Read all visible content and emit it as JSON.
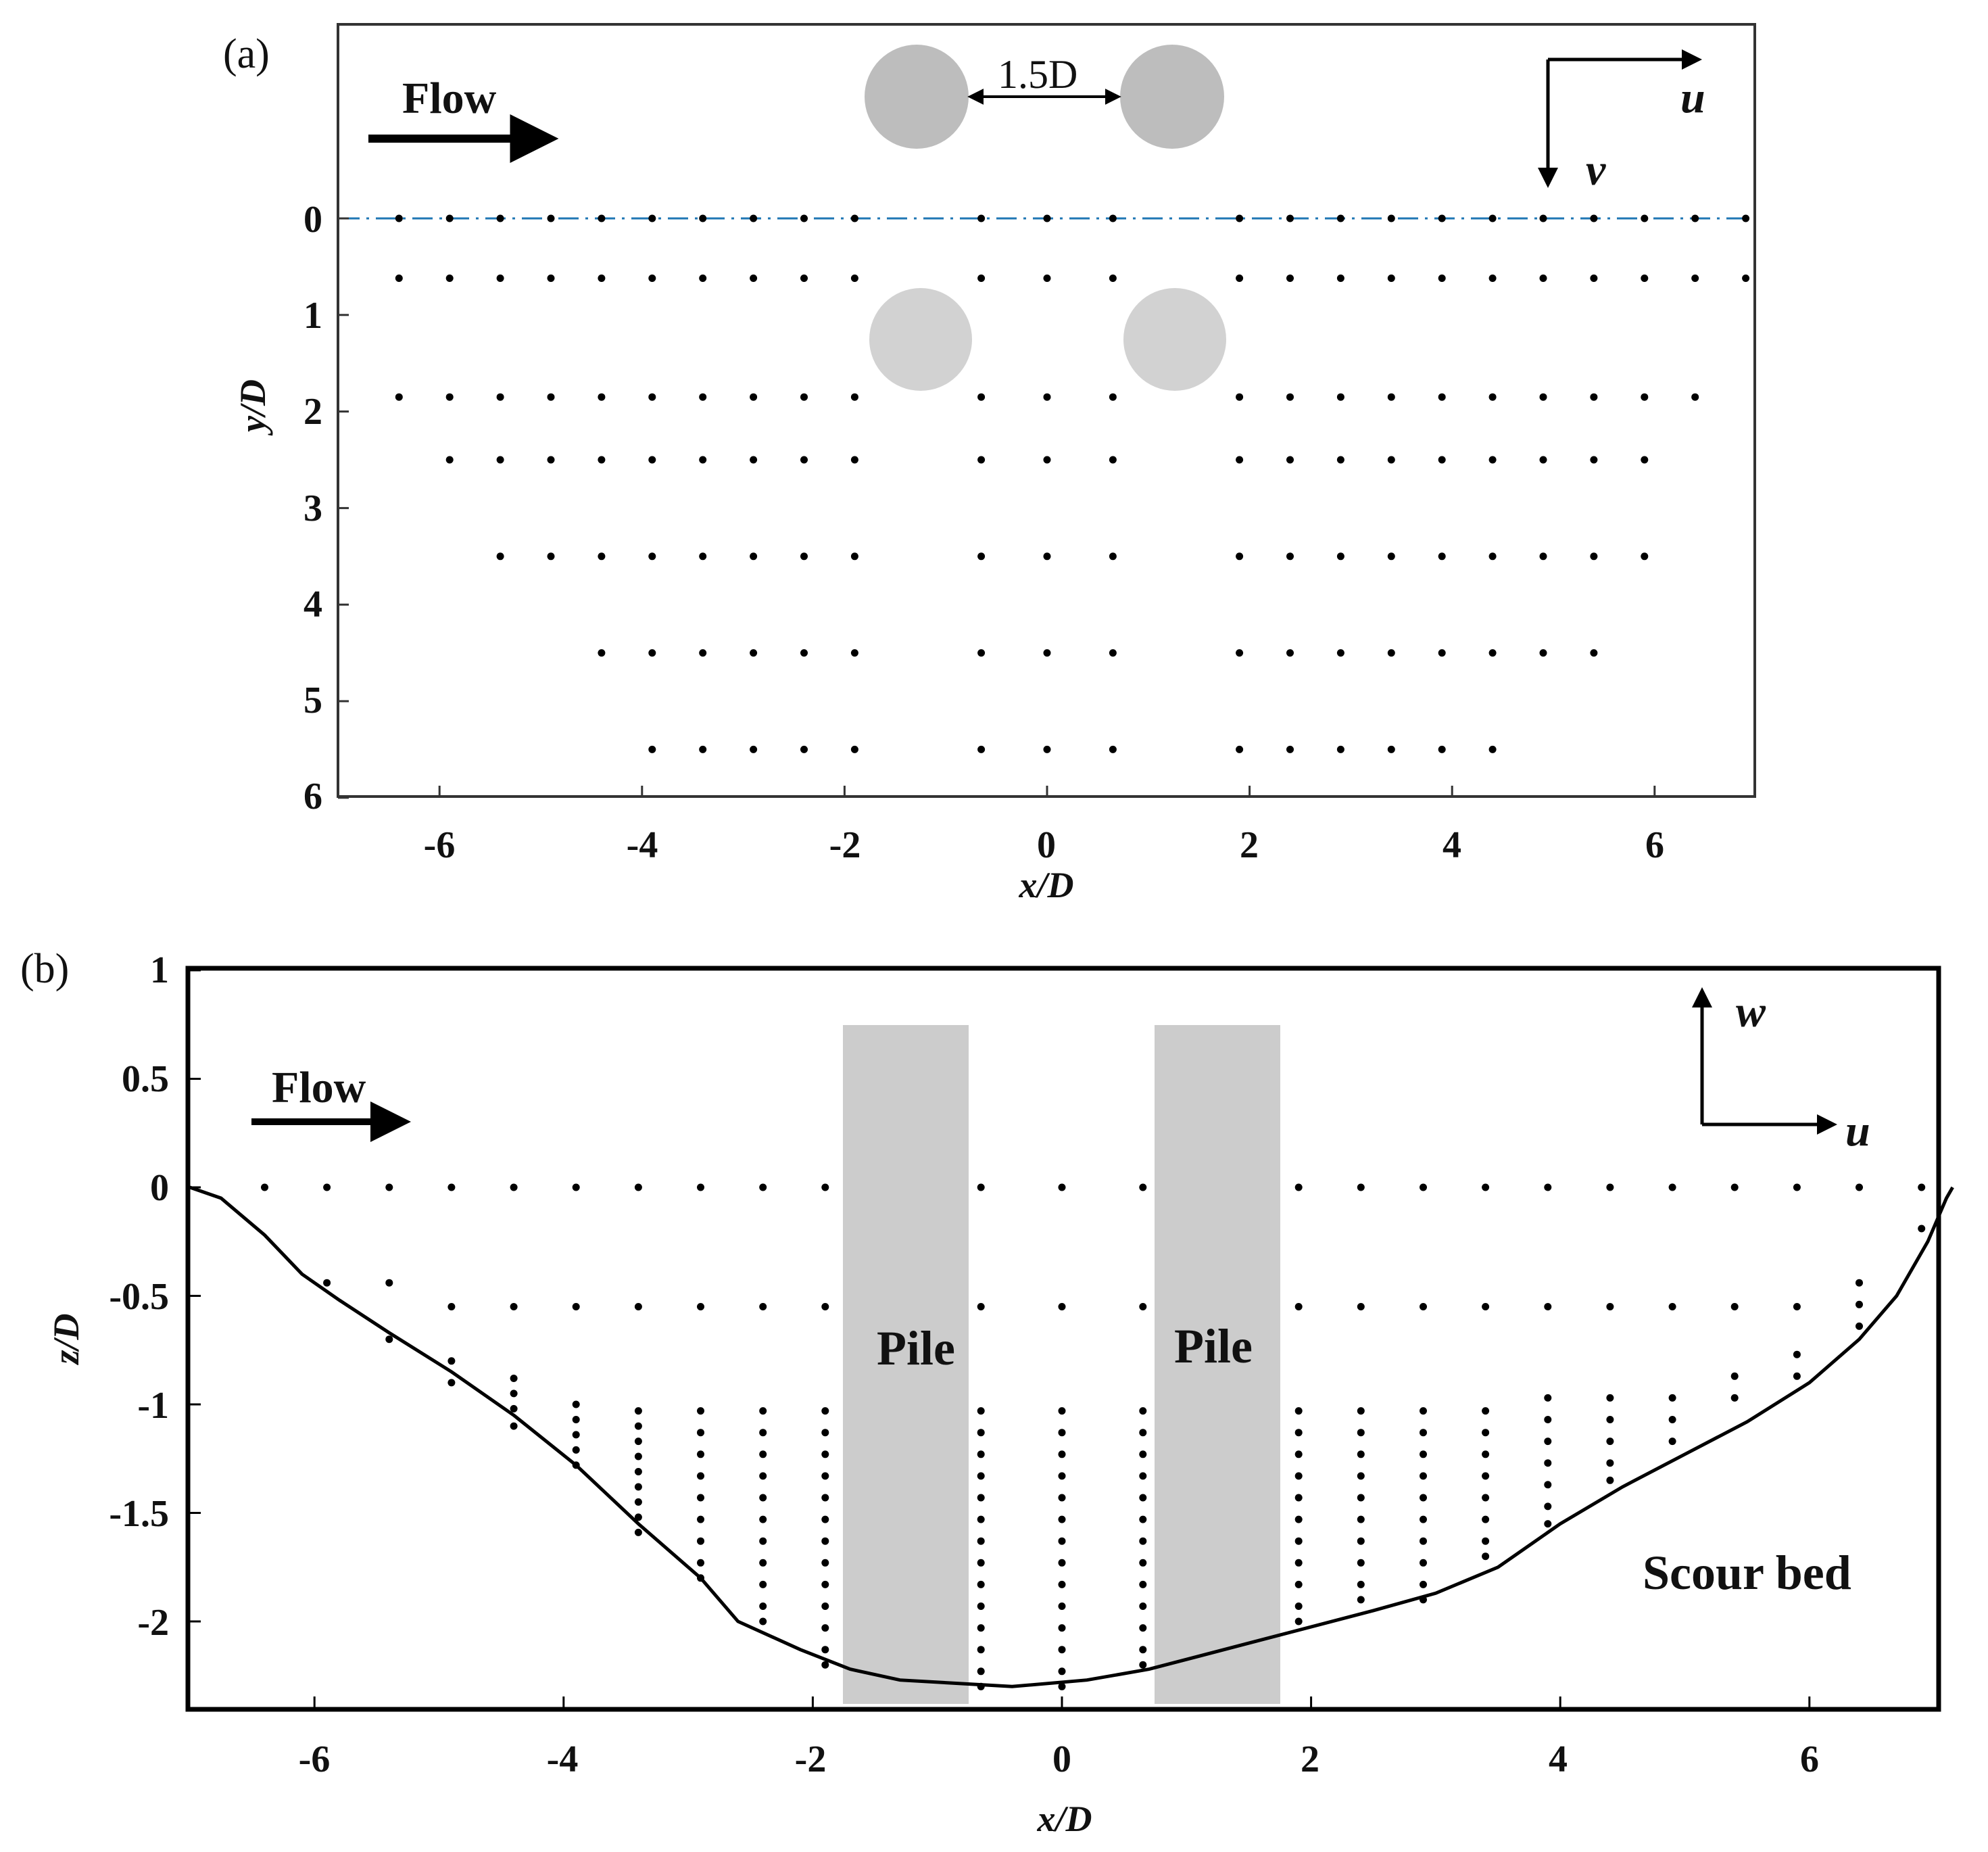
{
  "panel_a": {
    "label": "(a)",
    "flow_label": "Flow",
    "spacing_label": "1.5D",
    "axes_labels": {
      "x": "x/D",
      "y": "y/D"
    },
    "x_ticks": [
      "-6",
      "-4",
      "-2",
      "0",
      "2",
      "4",
      "6"
    ],
    "y_ticks": [
      "0",
      "1",
      "2",
      "3",
      "4",
      "5",
      "6"
    ],
    "vector_labels": {
      "u": "u",
      "v": "v"
    }
  },
  "panel_b": {
    "label": "(b)",
    "flow_label": "Flow",
    "pile_label_left": "Pile",
    "pile_label_right": "Pile",
    "bed_label": "Scour bed",
    "axes_labels": {
      "x": "x/D",
      "y": "z/D"
    },
    "x_ticks": [
      "-6",
      "-4",
      "-2",
      "0",
      "2",
      "4",
      "6"
    ],
    "y_ticks": [
      "1",
      "0.5",
      "0",
      "-0.5",
      "-1",
      "-1.5",
      "-2"
    ],
    "vector_labels": {
      "w": "w",
      "u": "u"
    }
  },
  "colors": {
    "axis": "#222222",
    "points": "#000000",
    "pile_top_view": "#bdbdbd",
    "pile_top_view_lower": "#d2d2d2",
    "pile_side_view": "#cccccc",
    "centerline": "#1f77b4"
  },
  "chart_data": [
    {
      "type": "scatter",
      "panel": "a",
      "xlim": [
        -7,
        7
      ],
      "ylim": [
        6,
        -2
      ],
      "y_inverted": true,
      "rows": [
        {
          "y": 0,
          "x": [
            -6.4,
            -5.9,
            -5.4,
            -4.9,
            -4.4,
            -3.9,
            -3.4,
            -2.9,
            -2.4,
            -1.9,
            -0.65,
            0,
            0.65,
            1.9,
            2.4,
            2.9,
            3.4,
            3.9,
            4.4,
            4.9,
            5.4,
            5.9,
            6.4,
            6.9
          ]
        },
        {
          "y": 0.62,
          "x": [
            -6.4,
            -5.9,
            -5.4,
            -4.9,
            -4.4,
            -3.9,
            -3.4,
            -2.9,
            -2.4,
            -1.9,
            -0.65,
            0,
            0.65,
            1.9,
            2.4,
            2.9,
            3.4,
            3.9,
            4.4,
            4.9,
            5.4,
            5.9,
            6.4,
            6.9
          ]
        },
        {
          "y": 1.85,
          "x": [
            -6.4,
            -5.9,
            -5.4,
            -4.9,
            -4.4,
            -3.9,
            -3.4,
            -2.9,
            -2.4,
            -1.9,
            -0.65,
            0,
            0.65,
            1.9,
            2.4,
            2.9,
            3.4,
            3.9,
            4.4,
            4.9,
            5.4,
            5.9,
            6.4
          ]
        },
        {
          "y": 2.5,
          "x": [
            -5.9,
            -5.4,
            -4.9,
            -4.4,
            -3.9,
            -3.4,
            -2.9,
            -2.4,
            -1.9,
            -0.65,
            0,
            0.65,
            1.9,
            2.4,
            2.9,
            3.4,
            3.9,
            4.4,
            4.9,
            5.4,
            5.9
          ]
        },
        {
          "y": 3.5,
          "x": [
            -5.4,
            -4.9,
            -4.4,
            -3.9,
            -3.4,
            -2.9,
            -2.4,
            -1.9,
            -0.65,
            0,
            0.65,
            1.9,
            2.4,
            2.9,
            3.4,
            3.9,
            4.4,
            4.9,
            5.4,
            5.9
          ]
        },
        {
          "y": 4.5,
          "x": [
            -4.4,
            -3.9,
            -3.4,
            -2.9,
            -2.4,
            -1.9,
            -0.65,
            0,
            0.65,
            1.9,
            2.4,
            2.9,
            3.4,
            3.9,
            4.4,
            4.9,
            5.4
          ]
        },
        {
          "y": 5.5,
          "x": [
            -3.9,
            -3.4,
            -2.9,
            -2.4,
            -1.9,
            -0.65,
            0,
            0.65,
            1.9,
            2.4,
            2.9,
            3.4,
            3.9,
            4.4
          ]
        }
      ],
      "piles_top": [
        {
          "x": -1.28,
          "y": -1.28,
          "d": 1
        },
        {
          "x": 1.25,
          "y": -1.28,
          "d": 1
        }
      ],
      "piles_mid": [
        {
          "x": -1.25,
          "y": 1.25,
          "d": 1
        },
        {
          "x": 1.25,
          "y": 1.25,
          "d": 1
        }
      ],
      "centerline_y": 0
    },
    {
      "type": "scatter",
      "panel": "b",
      "xlim": [
        -7,
        7.2
      ],
      "ylim": [
        -2.4,
        1
      ],
      "columns": [
        {
          "x": -6.4,
          "z": [
            0
          ]
        },
        {
          "x": -5.9,
          "z": [
            0,
            -0.44
          ]
        },
        {
          "x": -5.4,
          "z": [
            0,
            -0.44,
            -0.7
          ]
        },
        {
          "x": -4.9,
          "z": [
            0,
            -0.55,
            -0.8,
            -0.9
          ]
        },
        {
          "x": -4.4,
          "z": [
            0,
            -0.55,
            -0.88,
            -0.95,
            -1.02,
            -1.1
          ]
        },
        {
          "x": -3.9,
          "z": [
            0,
            -0.55,
            -1.0,
            -1.07,
            -1.14,
            -1.21,
            -1.28
          ]
        },
        {
          "x": -3.4,
          "z": [
            0,
            -0.55,
            -1.03,
            -1.1,
            -1.17,
            -1.24,
            -1.31,
            -1.38,
            -1.45,
            -1.52,
            -1.59
          ]
        },
        {
          "x": -2.9,
          "z": [
            0,
            -0.55,
            -1.03,
            -1.13,
            -1.23,
            -1.33,
            -1.43,
            -1.53,
            -1.63,
            -1.73,
            -1.8
          ]
        },
        {
          "x": -2.4,
          "z": [
            0,
            -0.55,
            -1.03,
            -1.13,
            -1.23,
            -1.33,
            -1.43,
            -1.53,
            -1.63,
            -1.73,
            -1.83,
            -1.93,
            -2.0
          ]
        },
        {
          "x": -1.9,
          "z": [
            0,
            -0.55,
            -1.03,
            -1.13,
            -1.23,
            -1.33,
            -1.43,
            -1.53,
            -1.63,
            -1.73,
            -1.83,
            -1.93,
            -2.03,
            -2.13,
            -2.2
          ]
        },
        {
          "x": -0.65,
          "z": [
            0,
            -0.55,
            -1.03,
            -1.13,
            -1.23,
            -1.33,
            -1.43,
            -1.53,
            -1.63,
            -1.73,
            -1.83,
            -1.93,
            -2.03,
            -2.13,
            -2.23,
            -2.3
          ]
        },
        {
          "x": 0,
          "z": [
            0,
            -0.55,
            -1.03,
            -1.13,
            -1.23,
            -1.33,
            -1.43,
            -1.53,
            -1.63,
            -1.73,
            -1.83,
            -1.93,
            -2.03,
            -2.13,
            -2.23,
            -2.3
          ]
        },
        {
          "x": 0.65,
          "z": [
            0,
            -0.55,
            -1.03,
            -1.13,
            -1.23,
            -1.33,
            -1.43,
            -1.53,
            -1.63,
            -1.73,
            -1.83,
            -1.93,
            -2.03,
            -2.13,
            -2.2
          ]
        },
        {
          "x": 1.9,
          "z": [
            0,
            -0.55,
            -1.03,
            -1.13,
            -1.23,
            -1.33,
            -1.43,
            -1.53,
            -1.63,
            -1.73,
            -1.83,
            -1.93,
            -2.0
          ]
        },
        {
          "x": 2.4,
          "z": [
            0,
            -0.55,
            -1.03,
            -1.13,
            -1.23,
            -1.33,
            -1.43,
            -1.53,
            -1.63,
            -1.73,
            -1.83,
            -1.9
          ]
        },
        {
          "x": 2.9,
          "z": [
            0,
            -0.55,
            -1.03,
            -1.13,
            -1.23,
            -1.33,
            -1.43,
            -1.53,
            -1.63,
            -1.73,
            -1.83,
            -1.9
          ]
        },
        {
          "x": 3.4,
          "z": [
            0,
            -0.55,
            -1.03,
            -1.13,
            -1.23,
            -1.33,
            -1.43,
            -1.53,
            -1.63,
            -1.7
          ]
        },
        {
          "x": 3.9,
          "z": [
            0,
            -0.55,
            -0.97,
            -1.07,
            -1.17,
            -1.27,
            -1.37,
            -1.47,
            -1.55
          ]
        },
        {
          "x": 4.4,
          "z": [
            0,
            -0.55,
            -0.97,
            -1.07,
            -1.17,
            -1.27,
            -1.35
          ]
        },
        {
          "x": 4.9,
          "z": [
            0,
            -0.55,
            -0.97,
            -1.07,
            -1.17
          ]
        },
        {
          "x": 5.4,
          "z": [
            0,
            -0.55,
            -0.87,
            -0.97
          ]
        },
        {
          "x": 5.9,
          "z": [
            0,
            -0.55,
            -0.77,
            -0.87
          ]
        },
        {
          "x": 6.4,
          "z": [
            0,
            -0.44,
            -0.54,
            -0.64
          ]
        },
        {
          "x": 6.9,
          "z": [
            0,
            -0.19
          ]
        }
      ],
      "scour_bed": [
        [
          -7.0,
          0.0
        ],
        [
          -6.75,
          -0.05
        ],
        [
          -6.4,
          -0.22
        ],
        [
          -6.1,
          -0.4
        ],
        [
          -5.8,
          -0.52
        ],
        [
          -5.4,
          -0.67
        ],
        [
          -4.9,
          -0.85
        ],
        [
          -4.4,
          -1.05
        ],
        [
          -3.9,
          -1.28
        ],
        [
          -3.4,
          -1.55
        ],
        [
          -2.9,
          -1.8
        ],
        [
          -2.6,
          -2.0
        ],
        [
          -2.1,
          -2.13
        ],
        [
          -1.7,
          -2.22
        ],
        [
          -1.3,
          -2.27
        ],
        [
          -0.4,
          -2.3
        ],
        [
          0.2,
          -2.27
        ],
        [
          0.7,
          -2.22
        ],
        [
          1.5,
          -2.1
        ],
        [
          2.5,
          -1.95
        ],
        [
          3.0,
          -1.87
        ],
        [
          3.5,
          -1.75
        ],
        [
          4.0,
          -1.55
        ],
        [
          4.5,
          -1.38
        ],
        [
          5.0,
          -1.23
        ],
        [
          5.5,
          -1.08
        ],
        [
          6.0,
          -0.9
        ],
        [
          6.4,
          -0.7
        ],
        [
          6.7,
          -0.5
        ],
        [
          6.95,
          -0.25
        ],
        [
          7.1,
          -0.05
        ],
        [
          7.15,
          0.0
        ]
      ],
      "piles": [
        {
          "x0": -1.75,
          "x1": -0.75
        },
        {
          "x0": 0.75,
          "x1": 1.75
        }
      ],
      "pile_top_z": 0.75
    }
  ]
}
